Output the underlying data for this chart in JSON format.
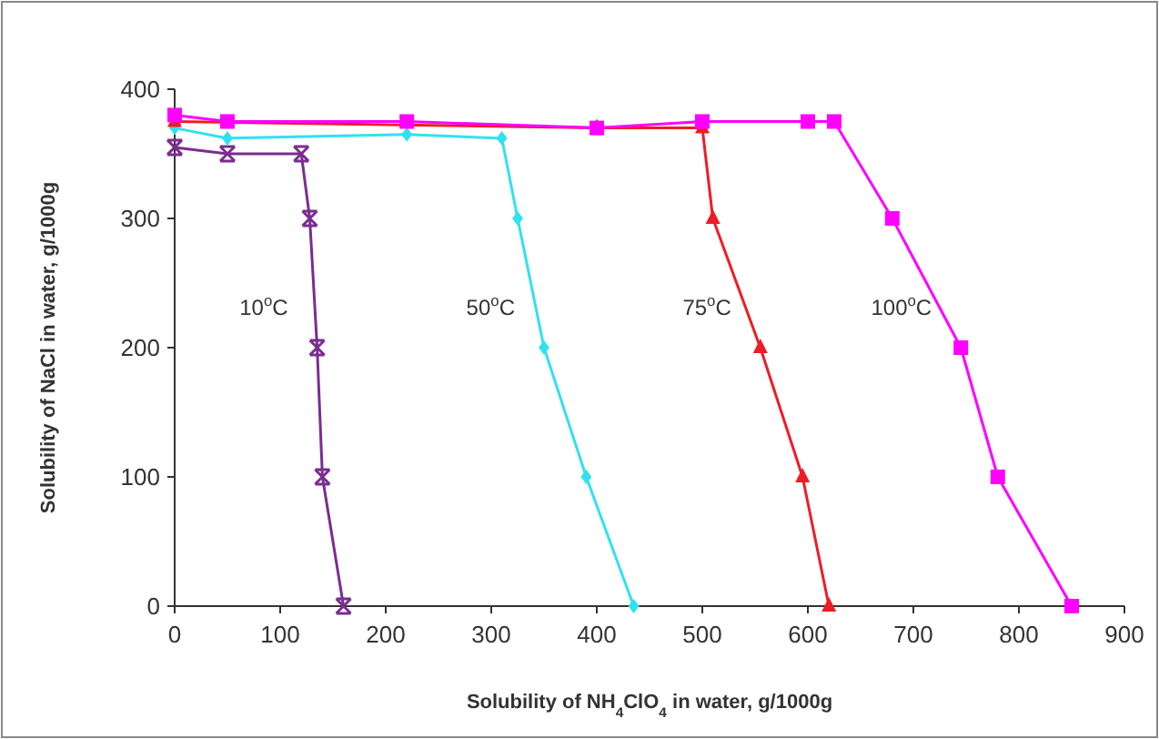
{
  "chart_data": {
    "type": "line",
    "xlabel": "Solubility of NH$_{4}$ClO$_{4}$ in water, g/1000g",
    "ylabel": "Solubility of NaCl in water, g/1000g",
    "xlim": [
      0,
      900
    ],
    "xticks": [
      0,
      100,
      200,
      300,
      400,
      500,
      600,
      700,
      800,
      900
    ],
    "ylim": [
      0,
      400
    ],
    "yticks": [
      0,
      100,
      200,
      300,
      400
    ],
    "grid": false,
    "legend": false,
    "series": [
      {
        "name": "10$^{o}$C",
        "color": "#7b2d8e",
        "marker": "cross",
        "x": [
          0,
          50,
          120,
          128,
          135,
          140,
          160
        ],
        "values": [
          355,
          350,
          350,
          300,
          200,
          100,
          0
        ]
      },
      {
        "name": "50$^{o}$C",
        "color": "#33e0f0",
        "marker": "diamond",
        "x": [
          0,
          50,
          220,
          310,
          325,
          350,
          390,
          435
        ],
        "values": [
          370,
          362,
          365,
          362,
          300,
          200,
          100,
          0
        ]
      },
      {
        "name": "75$^{o}$C",
        "color": "#ee1c25",
        "marker": "triangle",
        "x": [
          0,
          50,
          220,
          400,
          500,
          510,
          555,
          595,
          620
        ],
        "values": [
          375,
          null,
          null,
          370,
          370,
          300,
          200,
          100,
          0
        ]
      },
      {
        "name": "100$^{o}$C",
        "color": "#ff00ff",
        "marker": "square",
        "x": [
          0,
          50,
          220,
          400,
          500,
          600,
          625,
          680,
          745,
          780,
          850
        ],
        "values": [
          380,
          375,
          375,
          370,
          375,
          375,
          375,
          300,
          200,
          100,
          0
        ]
      }
    ]
  }
}
